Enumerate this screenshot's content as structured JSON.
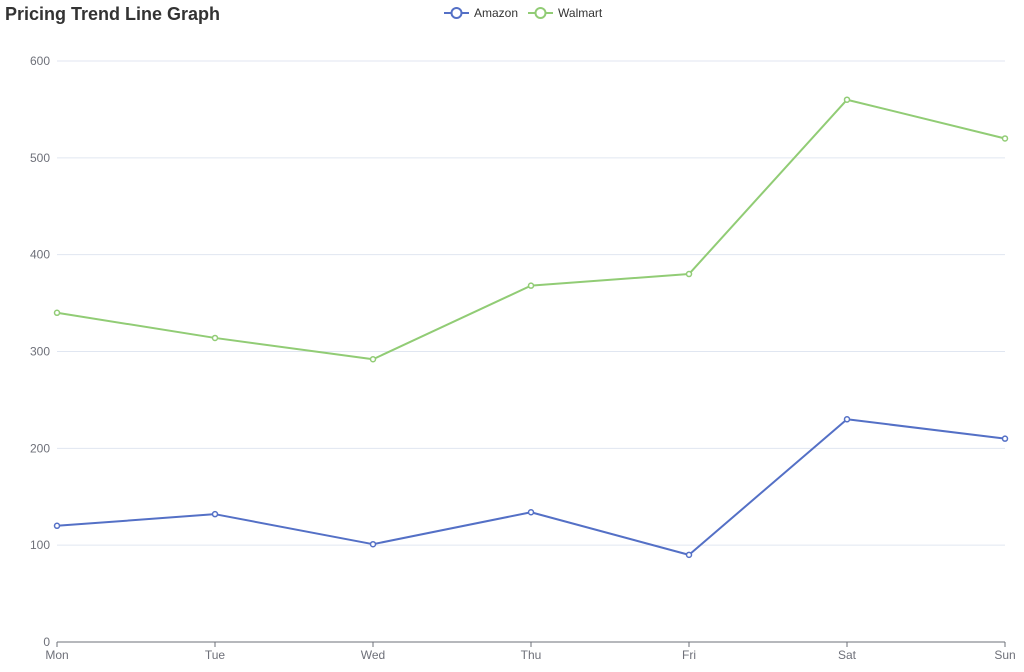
{
  "chart_data": {
    "type": "line",
    "title": "Pricing Trend Line Graph",
    "xlabel": "",
    "ylabel": "",
    "categories": [
      "Mon",
      "Tue",
      "Wed",
      "Thu",
      "Fri",
      "Sat",
      "Sun"
    ],
    "ylim": [
      0,
      600
    ],
    "yticks": [
      0,
      100,
      200,
      300,
      400,
      500,
      600
    ],
    "grid": true,
    "legend_position": "top-center",
    "series": [
      {
        "name": "Amazon",
        "color": "#5470c6",
        "values": [
          120,
          132,
          101,
          134,
          90,
          230,
          210
        ]
      },
      {
        "name": "Walmart",
        "color": "#91cc75",
        "values": [
          340,
          314,
          292,
          368,
          380,
          560,
          520
        ]
      }
    ]
  }
}
